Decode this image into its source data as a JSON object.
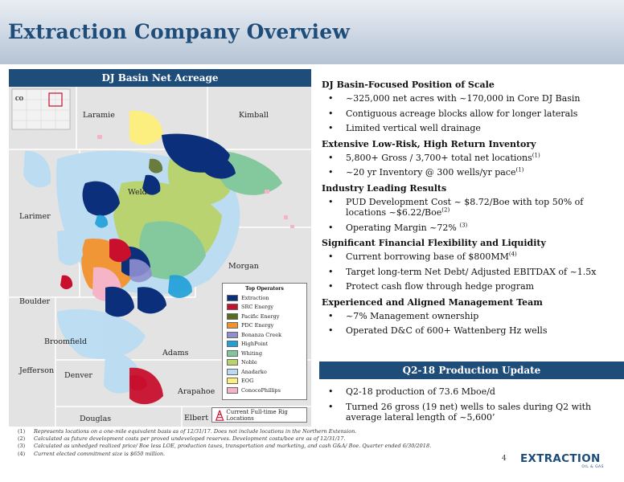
{
  "page_title": "Extraction Company Overview",
  "map": {
    "header": "DJ Basin Net Acreage",
    "state_label": "CO",
    "counties": [
      {
        "name": "Laramie"
      },
      {
        "name": "Kimball"
      },
      {
        "name": "Weld"
      },
      {
        "name": "Larimer"
      },
      {
        "name": "Morgan"
      },
      {
        "name": "Boulder"
      },
      {
        "name": "Broomfield"
      },
      {
        "name": "Adams"
      },
      {
        "name": "Jefferson"
      },
      {
        "name": "Denver"
      },
      {
        "name": "Arapahoe"
      },
      {
        "name": "Douglas"
      },
      {
        "name": "Elbert"
      }
    ],
    "legend_title": "Top Operators",
    "operators": [
      {
        "name": "Extraction",
        "color": "#0b2f7a"
      },
      {
        "name": "SRC Energy",
        "color": "#c8102e"
      },
      {
        "name": "Pacific Energy",
        "color": "#5a6b1f"
      },
      {
        "name": "PDC Energy",
        "color": "#f2922e"
      },
      {
        "name": "Bonanza Creek",
        "color": "#8f8fcf"
      },
      {
        "name": "HighPoint",
        "color": "#1fa0d8"
      },
      {
        "name": "Whiting",
        "color": "#7fc89a"
      },
      {
        "name": "Noble",
        "color": "#b7d36b"
      },
      {
        "name": "Anadarko",
        "color": "#b9dcf2"
      },
      {
        "name": "EOG",
        "color": "#fff07a"
      },
      {
        "name": "ConocoPhillips",
        "color": "#f7b3c6"
      }
    ],
    "locations_label": "Current Full-time Rig Locations"
  },
  "sections": [
    {
      "heading": "DJ Basin-Focused Position of Scale",
      "bullets": [
        {
          "text": "~325,000 net acres with ~170,000 in Core DJ Basin",
          "sup": ""
        },
        {
          "text": "Contiguous acreage blocks allow for longer laterals",
          "sup": ""
        },
        {
          "text": "Limited vertical well drainage",
          "sup": ""
        }
      ]
    },
    {
      "heading": "Extensive Low-Risk, High Return Inventory",
      "bullets": [
        {
          "text": "5,800+ Gross / 3,700+ total net locations",
          "sup": "(1)"
        },
        {
          "text": "~20 yr Inventory @ 300 wells/yr pace",
          "sup": "(1)"
        }
      ]
    },
    {
      "heading": "Industry Leading Results",
      "bullets": [
        {
          "text": "PUD Development Cost ~ $8.72/Boe with top 50% of locations ~$6.22/Boe",
          "sup": "(2)"
        },
        {
          "text": "Operating Margin ~72%",
          "sup": "(3)"
        }
      ]
    },
    {
      "heading": "Significant Financial Flexibility and Liquidity",
      "bullets": [
        {
          "text": "Current borrowing base of $800MM",
          "sup": "(4)"
        },
        {
          "text": "Target long-term Net Debt/ Adjusted EBITDAX of ~1.5x",
          "sup": ""
        },
        {
          "text": "Protect cash flow through hedge program",
          "sup": ""
        }
      ]
    },
    {
      "heading": "Experienced and Aligned Management Team",
      "bullets": [
        {
          "text": "~7% Management ownership",
          "sup": ""
        },
        {
          "text": "Operated D&C of 600+ Wattenberg Hz wells",
          "sup": ""
        }
      ]
    }
  ],
  "update": {
    "header": "Q2-18 Production Update",
    "bullets": [
      {
        "text": "Q2-18 production of 73.6 Mboe/d"
      },
      {
        "text": "Turned 26 gross (19 net) wells to sales during Q2 with average lateral length of ~5,600’"
      }
    ]
  },
  "footnotes": [
    {
      "num": "(1)",
      "text": "Represents locations on a one-mile equivalent basis as of 12/31/17. Does not include locations in the Northern Extension."
    },
    {
      "num": "(2)",
      "text": "Calculated as future development costs per proved undeveloped reserves. Development costs/boe are as of 12/31/17."
    },
    {
      "num": "(3)",
      "text": "Calculated as unhedged realized price/ Boe less LOE, production taxes, transportation and marketing, and cash G&A/ Boe. Quarter ended 6/30/2018."
    },
    {
      "num": "(4)",
      "text": "Current elected commitment size is $650 million."
    }
  ],
  "page_number": "4",
  "logo": {
    "text": "EXTRACTION",
    "sub": "OIL & GAS"
  }
}
